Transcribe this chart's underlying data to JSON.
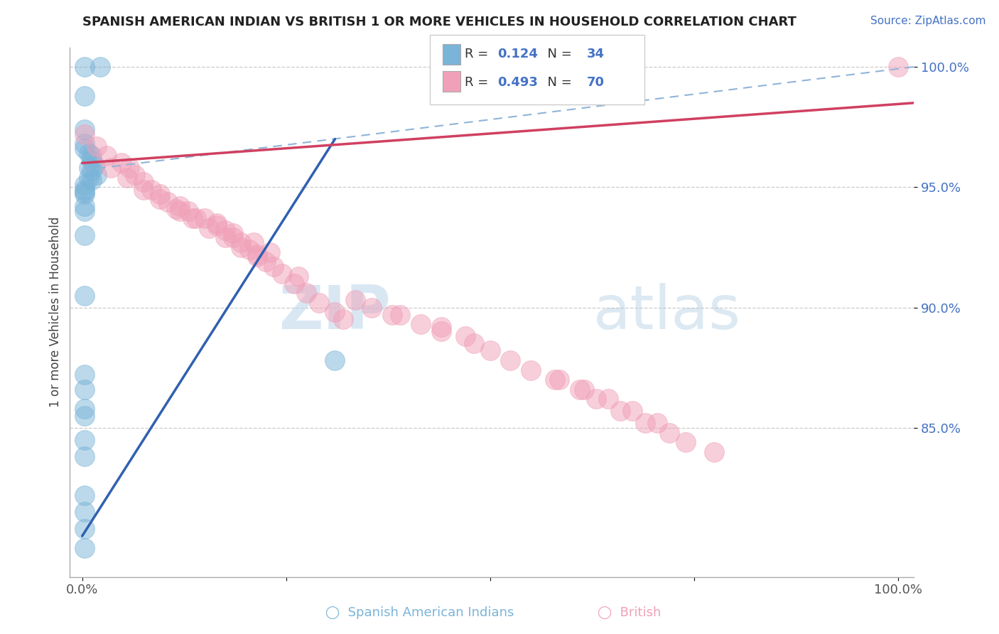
{
  "title": "SPANISH AMERICAN INDIAN VS BRITISH 1 OR MORE VEHICLES IN HOUSEHOLD CORRELATION CHART",
  "source": "Source: ZipAtlas.com",
  "ylabel": "1 or more Vehicles in Household",
  "color_blue": "#7ab4d8",
  "color_pink": "#f0a0b8",
  "color_blue_line": "#3060b0",
  "color_pink_line": "#d04060",
  "color_dashed": "#90b4d8",
  "watermark_zip": "ZIP",
  "watermark_atlas": "atlas",
  "legend_r1": "0.124",
  "legend_n1": "34",
  "legend_r2": "0.493",
  "legend_n2": "70",
  "blue_x": [
    0.003,
    0.022,
    0.003,
    0.003,
    0.003,
    0.003,
    0.008,
    0.012,
    0.012,
    0.015,
    0.008,
    0.012,
    0.018,
    0.008,
    0.012,
    0.003,
    0.003,
    0.003,
    0.003,
    0.003,
    0.003,
    0.003,
    0.003,
    0.31,
    0.003,
    0.003,
    0.003,
    0.003,
    0.003,
    0.003,
    0.003,
    0.003,
    0.003,
    0.003
  ],
  "blue_y": [
    1.0,
    1.0,
    0.988,
    0.974,
    0.968,
    0.966,
    0.964,
    0.963,
    0.961,
    0.959,
    0.958,
    0.957,
    0.955,
    0.954,
    0.953,
    0.951,
    0.949,
    0.948,
    0.947,
    0.942,
    0.94,
    0.93,
    0.905,
    0.878,
    0.872,
    0.866,
    0.858,
    0.855,
    0.845,
    0.838,
    0.822,
    0.815,
    0.808,
    0.8
  ],
  "pink_x": [
    0.003,
    0.018,
    0.03,
    0.048,
    0.058,
    0.065,
    0.075,
    0.085,
    0.095,
    0.105,
    0.12,
    0.13,
    0.15,
    0.165,
    0.175,
    0.185,
    0.195,
    0.205,
    0.215,
    0.225,
    0.235,
    0.245,
    0.26,
    0.275,
    0.29,
    0.31,
    0.32,
    0.035,
    0.055,
    0.075,
    0.095,
    0.115,
    0.135,
    0.155,
    0.175,
    0.195,
    0.215,
    0.265,
    0.335,
    0.38,
    0.415,
    0.44,
    0.48,
    0.5,
    0.525,
    0.55,
    0.58,
    0.61,
    0.63,
    0.66,
    0.69,
    0.72,
    0.74,
    0.775,
    1.0,
    0.585,
    0.615,
    0.645,
    0.675,
    0.705,
    0.355,
    0.39,
    0.44,
    0.47,
    0.12,
    0.14,
    0.165,
    0.185,
    0.21,
    0.23
  ],
  "pink_y": [
    0.972,
    0.967,
    0.963,
    0.96,
    0.958,
    0.955,
    0.952,
    0.949,
    0.947,
    0.944,
    0.942,
    0.94,
    0.937,
    0.935,
    0.932,
    0.929,
    0.927,
    0.924,
    0.922,
    0.919,
    0.917,
    0.914,
    0.91,
    0.906,
    0.902,
    0.898,
    0.895,
    0.958,
    0.954,
    0.949,
    0.945,
    0.941,
    0.937,
    0.933,
    0.929,
    0.925,
    0.921,
    0.913,
    0.903,
    0.897,
    0.893,
    0.89,
    0.885,
    0.882,
    0.878,
    0.874,
    0.87,
    0.866,
    0.862,
    0.857,
    0.852,
    0.848,
    0.844,
    0.84,
    1.0,
    0.87,
    0.866,
    0.862,
    0.857,
    0.852,
    0.9,
    0.897,
    0.892,
    0.888,
    0.94,
    0.937,
    0.934,
    0.931,
    0.927,
    0.923
  ]
}
